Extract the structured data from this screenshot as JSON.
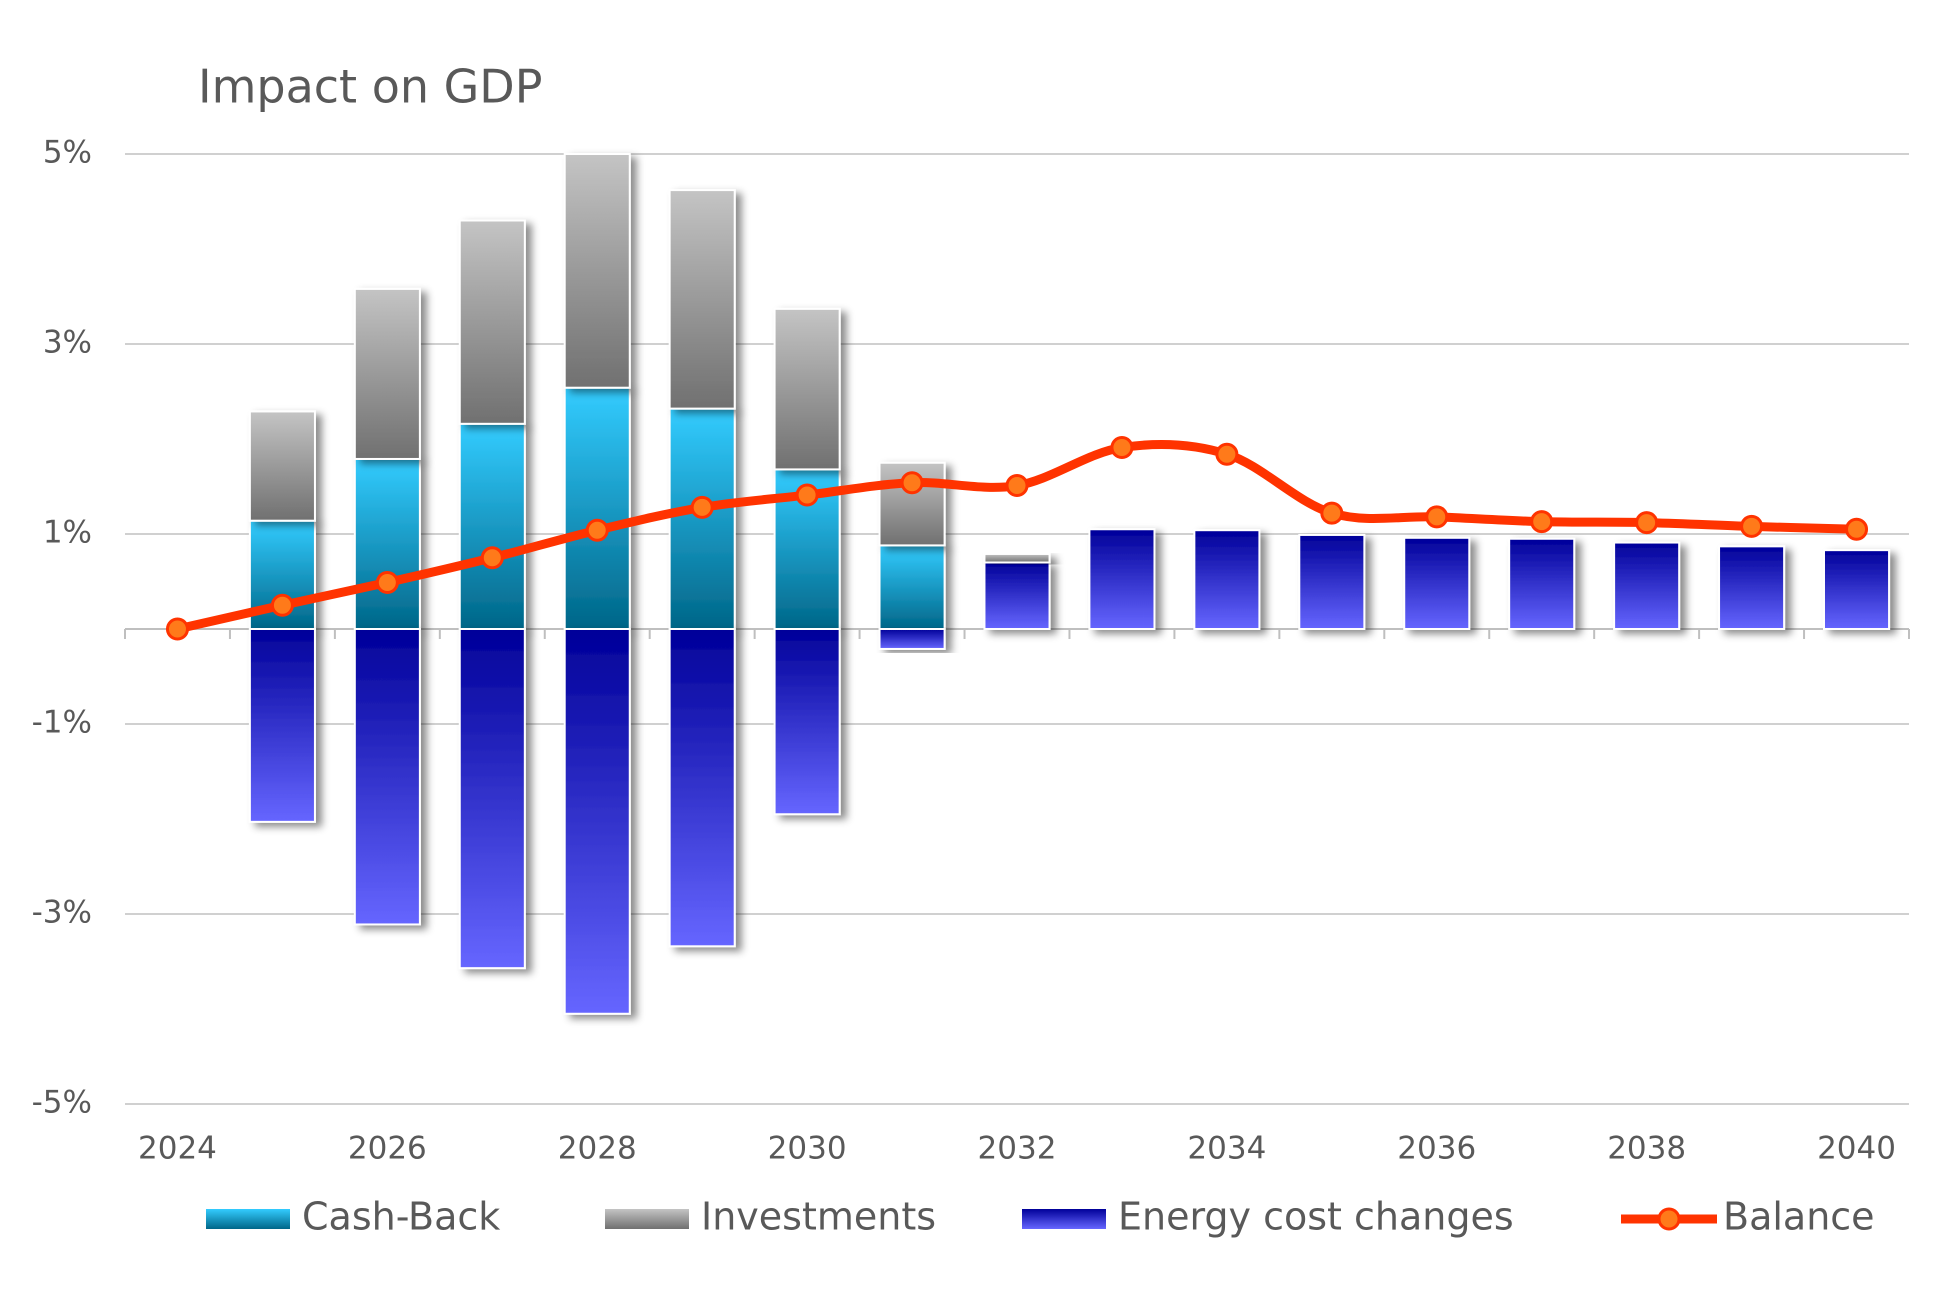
{
  "chart_data": {
    "type": "bar-line",
    "title": "Impact on GDP",
    "categories": [
      "2024",
      null,
      "2026",
      null,
      "2028",
      null,
      "2030",
      null,
      "2032",
      null,
      "2034",
      null,
      "2036",
      null,
      "2038",
      null,
      "2040"
    ],
    "series": [
      {
        "name": "Cash-Back",
        "type": "bar",
        "gradient": [
          "#33ccff",
          "#006688"
        ],
        "values": [
          0,
          1.14,
          1.79,
          2.16,
          2.54,
          2.32,
          1.68,
          0.88,
          0,
          0,
          0,
          0,
          0,
          0,
          0,
          0,
          0
        ]
      },
      {
        "name": "Investments",
        "type": "bar",
        "gradient": [
          "#c4c4c4",
          "#707070"
        ],
        "values": [
          0,
          1.15,
          1.79,
          2.14,
          2.46,
          2.3,
          1.69,
          0.87,
          0.09,
          0,
          0,
          0,
          0,
          0,
          0,
          0,
          0
        ]
      },
      {
        "name": "Energy cost changes",
        "type": "bar",
        "gradient": [
          "#000099",
          "#6666ff"
        ],
        "values": [
          0,
          -2.03,
          -3.11,
          -3.57,
          -4.05,
          -3.34,
          -1.95,
          -0.21,
          0.7,
          1.05,
          1.04,
          0.99,
          0.96,
          0.95,
          0.91,
          0.87,
          0.83
        ]
      },
      {
        "name": "Balance",
        "type": "line",
        "color": "#ff3300",
        "marker_color": "#ff7a1a",
        "values": [
          0,
          0.25,
          0.49,
          0.75,
          1.04,
          1.28,
          1.41,
          1.54,
          1.51,
          1.91,
          1.84,
          1.22,
          1.18,
          1.13,
          1.12,
          1.08,
          1.05
        ]
      }
    ],
    "ylim": [
      -5,
      5
    ],
    "yticks": [
      {
        "value": -5,
        "label": "-5%"
      },
      {
        "value": -3,
        "label": "-3%"
      },
      {
        "value": -1,
        "label": "-1%"
      },
      {
        "value": 1,
        "label": "1%"
      },
      {
        "value": 3,
        "label": "3%"
      },
      {
        "value": 5,
        "label": "5%"
      }
    ],
    "grid": true,
    "legend": "bottom"
  }
}
